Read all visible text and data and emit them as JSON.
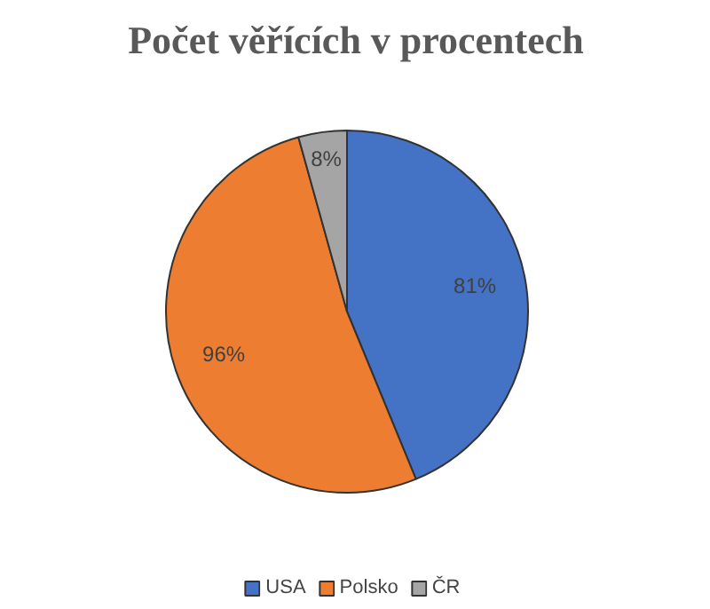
{
  "chart_data": {
    "type": "pie",
    "title": "Počet věřících v procentech",
    "categories": [
      "USA",
      "Polsko",
      "ČR"
    ],
    "values": [
      81,
      96,
      8
    ],
    "colors": [
      "#4472c4",
      "#ed7d31",
      "#a5a5a5"
    ],
    "value_labels": [
      "81%",
      "96%",
      "8%"
    ],
    "legend": "bottom"
  }
}
